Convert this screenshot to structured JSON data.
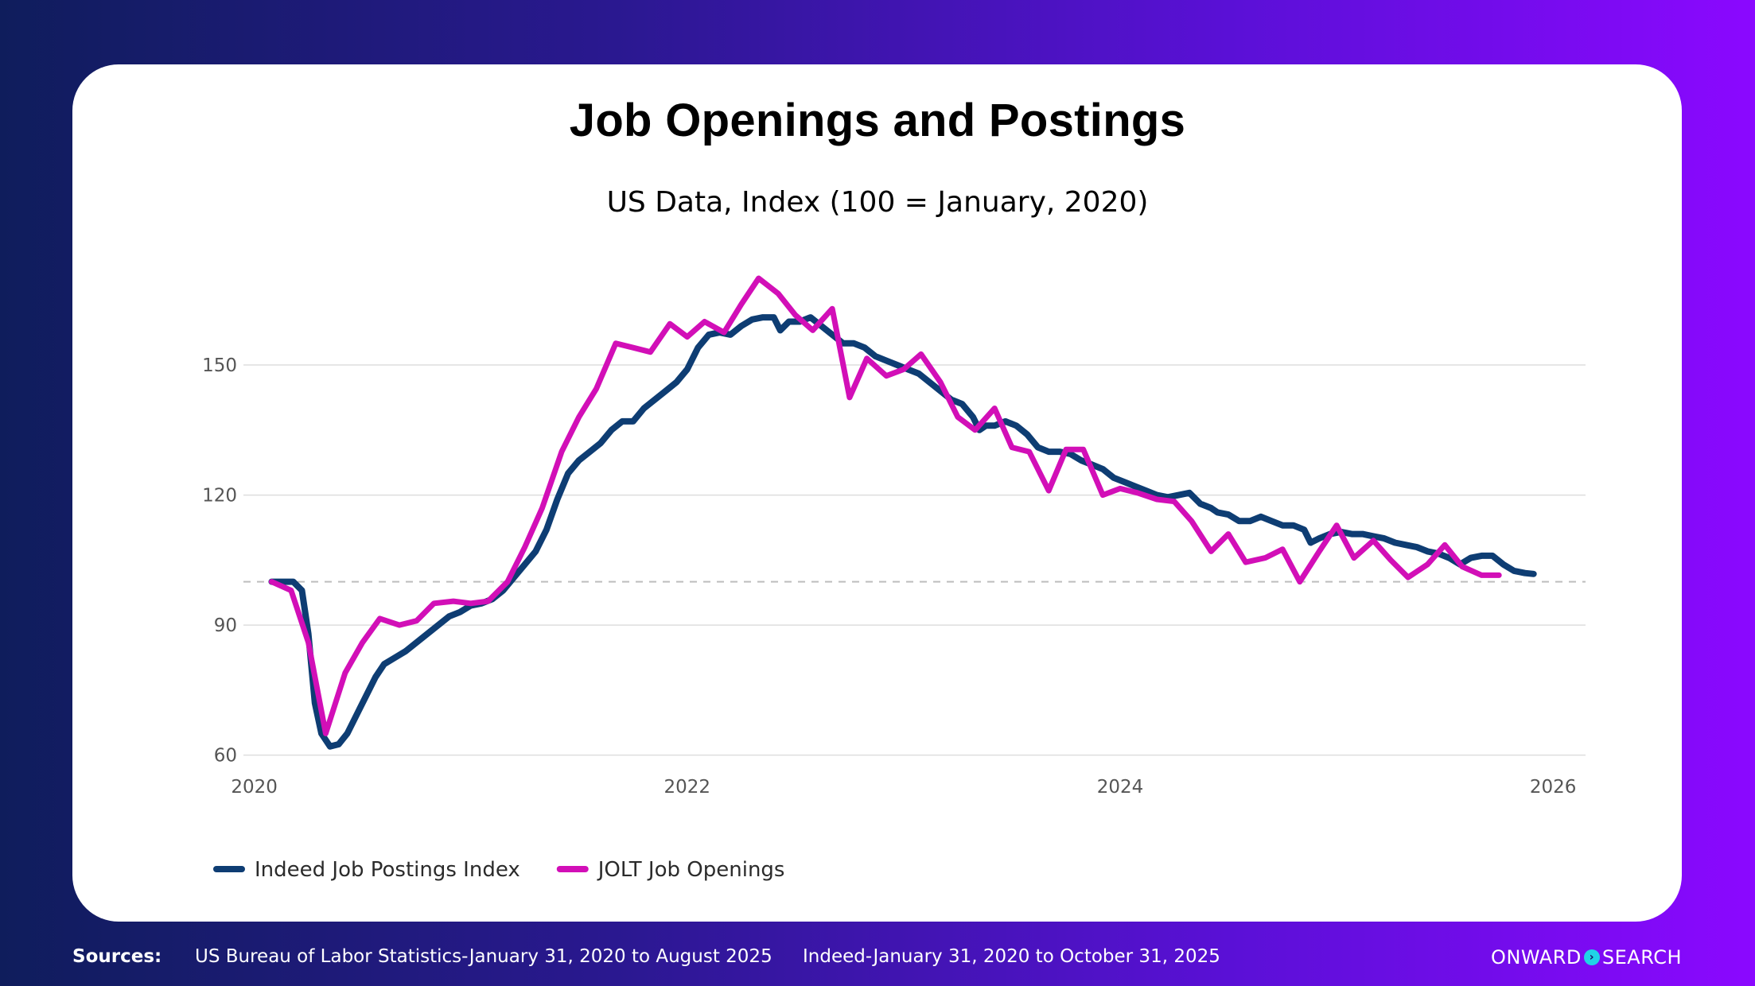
{
  "chart_data": {
    "type": "line",
    "title": "Job Openings and Postings",
    "subtitle": "US Data, Index (100 = January, 2020)",
    "xlabel": "",
    "ylabel": "",
    "x_range": [
      2019.95,
      2026.15
    ],
    "y_range": [
      57,
      170
    ],
    "x_ticks": [
      2020,
      2022,
      2024,
      2026
    ],
    "y_ticks": [
      60,
      90,
      120,
      150
    ],
    "reference_line": 100,
    "grid": true,
    "legend_position": "bottom-left",
    "series": [
      {
        "name": "Indeed Job Postings Index",
        "color": "#0e3d73",
        "points": [
          [
            2020.08,
            100
          ],
          [
            2020.13,
            100
          ],
          [
            2020.18,
            100
          ],
          [
            2020.22,
            98
          ],
          [
            2020.25,
            88
          ],
          [
            2020.28,
            72
          ],
          [
            2020.31,
            65
          ],
          [
            2020.35,
            62
          ],
          [
            2020.39,
            62.5
          ],
          [
            2020.43,
            65
          ],
          [
            2020.48,
            70
          ],
          [
            2020.52,
            74
          ],
          [
            2020.56,
            78
          ],
          [
            2020.6,
            81
          ],
          [
            2020.65,
            82.5
          ],
          [
            2020.7,
            84
          ],
          [
            2020.75,
            86
          ],
          [
            2020.8,
            88
          ],
          [
            2020.85,
            90
          ],
          [
            2020.9,
            92
          ],
          [
            2020.95,
            93
          ],
          [
            2021.0,
            94.5
          ],
          [
            2021.05,
            95
          ],
          [
            2021.1,
            96
          ],
          [
            2021.15,
            98
          ],
          [
            2021.2,
            101
          ],
          [
            2021.25,
            104
          ],
          [
            2021.3,
            107
          ],
          [
            2021.35,
            112
          ],
          [
            2021.4,
            119
          ],
          [
            2021.45,
            125
          ],
          [
            2021.5,
            128
          ],
          [
            2021.55,
            130
          ],
          [
            2021.6,
            132
          ],
          [
            2021.65,
            135
          ],
          [
            2021.7,
            137
          ],
          [
            2021.75,
            137
          ],
          [
            2021.8,
            140
          ],
          [
            2021.85,
            142
          ],
          [
            2021.9,
            144
          ],
          [
            2021.95,
            146
          ],
          [
            2022.0,
            149
          ],
          [
            2022.05,
            154
          ],
          [
            2022.1,
            157
          ],
          [
            2022.15,
            157.5
          ],
          [
            2022.2,
            157
          ],
          [
            2022.25,
            159
          ],
          [
            2022.3,
            160.5
          ],
          [
            2022.35,
            161
          ],
          [
            2022.4,
            161
          ],
          [
            2022.43,
            158
          ],
          [
            2022.47,
            160
          ],
          [
            2022.52,
            160
          ],
          [
            2022.57,
            161
          ],
          [
            2022.62,
            159
          ],
          [
            2022.67,
            157
          ],
          [
            2022.72,
            155
          ],
          [
            2022.77,
            155
          ],
          [
            2022.82,
            154
          ],
          [
            2022.87,
            152
          ],
          [
            2022.92,
            151
          ],
          [
            2022.97,
            150
          ],
          [
            2023.02,
            149
          ],
          [
            2023.07,
            148
          ],
          [
            2023.12,
            146
          ],
          [
            2023.17,
            144
          ],
          [
            2023.22,
            142
          ],
          [
            2023.27,
            141
          ],
          [
            2023.32,
            138
          ],
          [
            2023.35,
            135
          ],
          [
            2023.38,
            136
          ],
          [
            2023.42,
            136
          ],
          [
            2023.47,
            137
          ],
          [
            2023.52,
            136
          ],
          [
            2023.57,
            134
          ],
          [
            2023.62,
            131
          ],
          [
            2023.67,
            130
          ],
          [
            2023.72,
            130
          ],
          [
            2023.77,
            129.5
          ],
          [
            2023.82,
            128
          ],
          [
            2023.87,
            127
          ],
          [
            2023.92,
            126
          ],
          [
            2023.97,
            124
          ],
          [
            2024.02,
            123
          ],
          [
            2024.07,
            122
          ],
          [
            2024.12,
            121
          ],
          [
            2024.17,
            120
          ],
          [
            2024.22,
            119.5
          ],
          [
            2024.27,
            120
          ],
          [
            2024.32,
            120.5
          ],
          [
            2024.37,
            118
          ],
          [
            2024.42,
            117
          ],
          [
            2024.45,
            116
          ],
          [
            2024.5,
            115.5
          ],
          [
            2024.55,
            114
          ],
          [
            2024.6,
            114
          ],
          [
            2024.65,
            115
          ],
          [
            2024.7,
            114
          ],
          [
            2024.75,
            113
          ],
          [
            2024.8,
            113
          ],
          [
            2024.85,
            112
          ],
          [
            2024.88,
            109
          ],
          [
            2024.92,
            110
          ],
          [
            2024.97,
            111
          ],
          [
            2025.02,
            111.5
          ],
          [
            2025.07,
            111
          ],
          [
            2025.12,
            111
          ],
          [
            2025.17,
            110.5
          ],
          [
            2025.22,
            110
          ],
          [
            2025.27,
            109
          ],
          [
            2025.32,
            108.5
          ],
          [
            2025.37,
            108
          ],
          [
            2025.42,
            107
          ],
          [
            2025.47,
            106.5
          ],
          [
            2025.52,
            105.5
          ],
          [
            2025.57,
            104
          ],
          [
            2025.62,
            105.5
          ],
          [
            2025.67,
            106
          ],
          [
            2025.72,
            106
          ],
          [
            2025.77,
            104
          ],
          [
            2025.82,
            102.5
          ],
          [
            2025.87,
            102
          ],
          [
            2025.91,
            101.8
          ]
        ]
      },
      {
        "name": "JOLT Job Openings",
        "color": "#d20fb7",
        "points": [
          [
            2020.08,
            100
          ],
          [
            2020.17,
            98
          ],
          [
            2020.25,
            86
          ],
          [
            2020.33,
            65
          ],
          [
            2020.42,
            79
          ],
          [
            2020.5,
            86
          ],
          [
            2020.58,
            91.5
          ],
          [
            2020.67,
            90
          ],
          [
            2020.75,
            91
          ],
          [
            2020.83,
            95
          ],
          [
            2020.92,
            95.5
          ],
          [
            2021.0,
            95
          ],
          [
            2021.08,
            95.5
          ],
          [
            2021.17,
            100
          ],
          [
            2021.25,
            108
          ],
          [
            2021.33,
            117
          ],
          [
            2021.42,
            130
          ],
          [
            2021.5,
            138
          ],
          [
            2021.58,
            144.5
          ],
          [
            2021.67,
            155
          ],
          [
            2021.75,
            154
          ],
          [
            2021.83,
            153
          ],
          [
            2021.92,
            159.5
          ],
          [
            2022.0,
            156.5
          ],
          [
            2022.08,
            160
          ],
          [
            2022.17,
            157.5
          ],
          [
            2022.25,
            164
          ],
          [
            2022.33,
            170
          ],
          [
            2022.42,
            166.5
          ],
          [
            2022.5,
            161.5
          ],
          [
            2022.58,
            158
          ],
          [
            2022.67,
            163
          ],
          [
            2022.75,
            142.5
          ],
          [
            2022.83,
            151.5
          ],
          [
            2022.92,
            147.5
          ],
          [
            2023.0,
            149
          ],
          [
            2023.08,
            152.5
          ],
          [
            2023.17,
            146
          ],
          [
            2023.25,
            138
          ],
          [
            2023.33,
            135
          ],
          [
            2023.42,
            140
          ],
          [
            2023.5,
            131
          ],
          [
            2023.58,
            130
          ],
          [
            2023.67,
            121
          ],
          [
            2023.75,
            130.5
          ],
          [
            2023.83,
            130.5
          ],
          [
            2023.92,
            120
          ],
          [
            2024.0,
            121.5
          ],
          [
            2024.08,
            120.5
          ],
          [
            2024.17,
            119
          ],
          [
            2024.25,
            118.5
          ],
          [
            2024.33,
            114
          ],
          [
            2024.42,
            107
          ],
          [
            2024.5,
            111
          ],
          [
            2024.58,
            104.5
          ],
          [
            2024.67,
            105.5
          ],
          [
            2024.75,
            107.5
          ],
          [
            2024.83,
            100
          ],
          [
            2024.92,
            107
          ],
          [
            2025.0,
            113
          ],
          [
            2025.08,
            105.5
          ],
          [
            2025.17,
            109.5
          ],
          [
            2025.25,
            105
          ],
          [
            2025.33,
            101
          ],
          [
            2025.42,
            104
          ],
          [
            2025.5,
            108.5
          ],
          [
            2025.58,
            103.5
          ],
          [
            2025.67,
            101.5
          ],
          [
            2025.75,
            101.5
          ]
        ]
      }
    ]
  },
  "footer": {
    "sources_label": "Sources:",
    "source_1": "US Bureau of Labor Statistics-January 31, 2020 to August 2025",
    "source_2": "Indeed-January 31, 2020 to October 31, 2025",
    "brand_left": "ONWARD",
    "brand_right": "SEARCH",
    "brand_icon": "chevron-right-circle-icon"
  }
}
